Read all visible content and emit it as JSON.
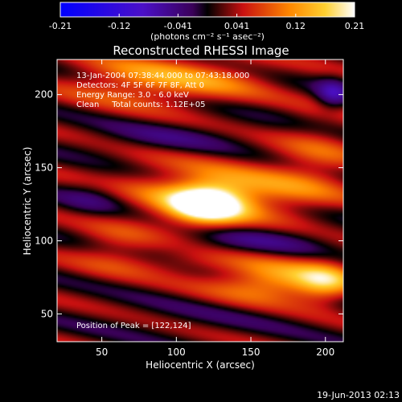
{
  "chart_data": {
    "type": "heatmap",
    "title": "Reconstructed RHESSI Image",
    "xlabel": "Heliocentric X (arcsec)",
    "ylabel": "Heliocentric Y (arcsec)",
    "xlim": [
      20,
      212
    ],
    "ylim": [
      31,
      224
    ],
    "x_ticks": [
      50,
      100,
      150,
      200
    ],
    "y_ticks": [
      50,
      100,
      150,
      200
    ],
    "colorbar": {
      "range": [
        -0.21,
        0.21
      ],
      "ticks": [
        "-0.21",
        "-0.12",
        "-0.041",
        "0.041",
        "0.12",
        "0.21"
      ],
      "unit_label": "(photons cm⁻² s⁻¹ asec⁻²)"
    },
    "annotations": [
      "13-Jan-2004 07:38:44.000 to 07:43:18.000",
      "Detectors: 4F 5F 6F 7F 8F, Att 0",
      "Energy Range: 3.0 - 6.0 keV",
      "Clean     Total counts: 1.12E+05"
    ],
    "peak_text": "Position of Peak = [122,124]",
    "peak": {
      "x": 122,
      "y": 124,
      "value": 0.21
    },
    "date_stamp": "19-Jun-2013 02:13",
    "blobs": [
      {
        "x": 120,
        "y": 125,
        "sx": 18,
        "sy": 10,
        "a": 0.22
      },
      {
        "x": 100,
        "y": 135,
        "sx": 40,
        "sy": 16,
        "a": 0.06
      },
      {
        "x": 160,
        "y": 132,
        "sx": 32,
        "sy": 13,
        "a": 0.07
      },
      {
        "x": 195,
        "y": 158,
        "sx": 20,
        "sy": 18,
        "a": 0.05
      },
      {
        "x": 45,
        "y": 130,
        "sx": 18,
        "sy": 10,
        "a": -0.05
      },
      {
        "x": 78,
        "y": 210,
        "sx": 35,
        "sy": 12,
        "a": 0.09
      },
      {
        "x": 130,
        "y": 210,
        "sx": 30,
        "sy": 10,
        "a": 0.05
      },
      {
        "x": 165,
        "y": 72,
        "sx": 28,
        "sy": 10,
        "a": 0.12
      },
      {
        "x": 200,
        "y": 72,
        "sx": 14,
        "sy": 10,
        "a": 0.1
      },
      {
        "x": 60,
        "y": 95,
        "sx": 20,
        "sy": 12,
        "a": 0.05
      },
      {
        "x": 150,
        "y": 100,
        "sx": 40,
        "sy": 8,
        "a": -0.05
      },
      {
        "x": 95,
        "y": 170,
        "sx": 40,
        "sy": 8,
        "a": -0.04
      },
      {
        "x": 205,
        "y": 200,
        "sx": 8,
        "sy": 8,
        "a": -0.08
      },
      {
        "x": 120,
        "y": 48,
        "sx": 60,
        "sy": 10,
        "a": -0.02
      },
      {
        "x": 110,
        "y": 85,
        "sx": 30,
        "sy": 6,
        "a": 0.04
      }
    ]
  }
}
